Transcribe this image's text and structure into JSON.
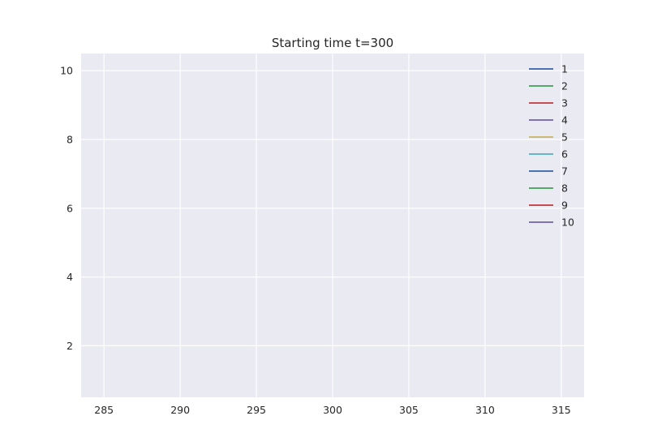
{
  "chart_data": {
    "type": "line",
    "title": "Starting time t=300",
    "xlabel": "",
    "ylabel": "",
    "xlim": [
      283.5,
      316.5
    ],
    "ylim": [
      0.5,
      10.5
    ],
    "xticks": [
      285,
      290,
      295,
      300,
      305,
      310,
      315
    ],
    "yticks": [
      2,
      4,
      6,
      8,
      10
    ],
    "grid": true,
    "legend_position": "top-right",
    "background_color": "#eaeaf2",
    "grid_color": "#ffffff",
    "series": [
      {
        "name": "1",
        "color": "#4c72b0",
        "x": [],
        "y": []
      },
      {
        "name": "2",
        "color": "#55a868",
        "x": [],
        "y": []
      },
      {
        "name": "3",
        "color": "#c44e52",
        "x": [],
        "y": []
      },
      {
        "name": "4",
        "color": "#8172b2",
        "x": [],
        "y": []
      },
      {
        "name": "5",
        "color": "#ccb974",
        "x": [],
        "y": []
      },
      {
        "name": "6",
        "color": "#64b5cd",
        "x": [],
        "y": []
      },
      {
        "name": "7",
        "color": "#4c72b0",
        "x": [],
        "y": []
      },
      {
        "name": "8",
        "color": "#55a868",
        "x": [],
        "y": []
      },
      {
        "name": "9",
        "color": "#c44e52",
        "x": [],
        "y": []
      },
      {
        "name": "10",
        "color": "#8172b2",
        "x": [],
        "y": []
      }
    ]
  }
}
